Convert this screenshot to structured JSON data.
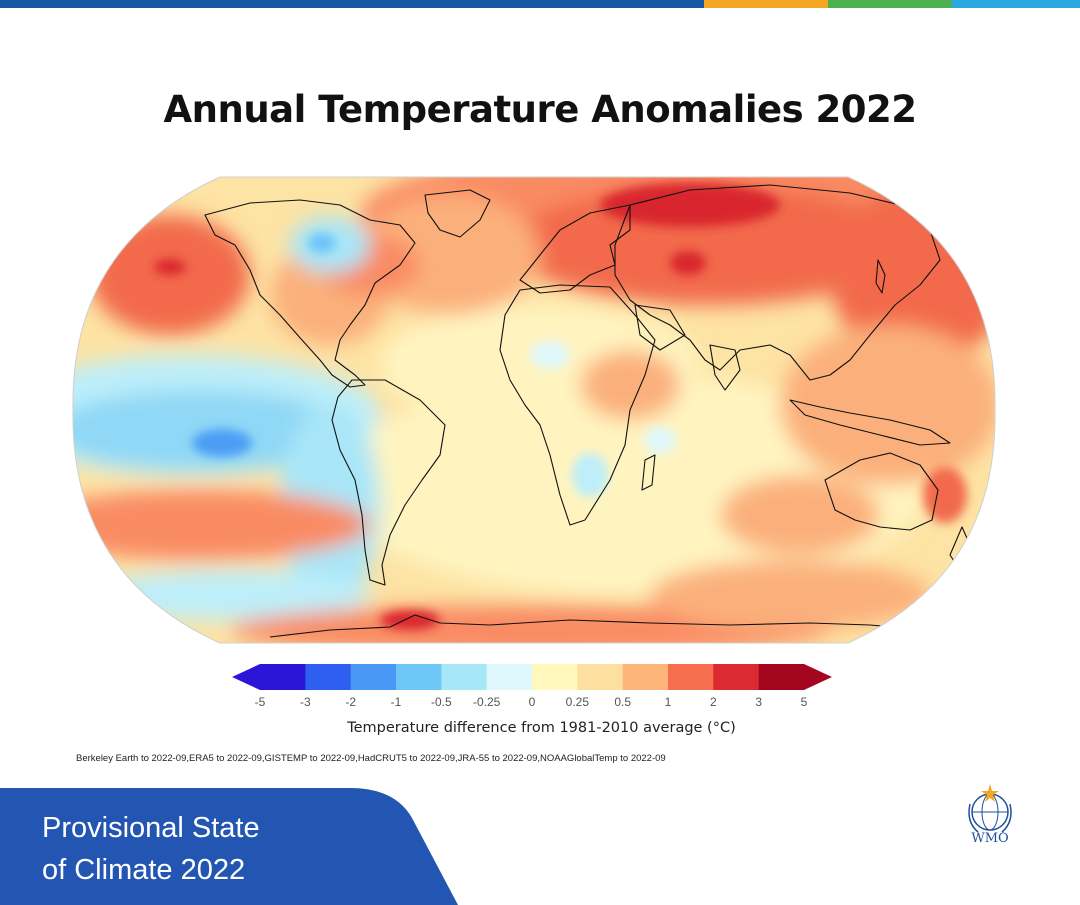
{
  "header": {
    "title": "Annual Temperature Anomalies 2022",
    "accent_colors": [
      "#1656a4",
      "#f5a623",
      "#4caf50",
      "#29a9e0"
    ]
  },
  "map": {
    "projection": "Robinson world map",
    "outline_color": "#111111"
  },
  "colorbar": {
    "ticks": [
      "-5",
      "-3",
      "-2",
      "-1",
      "-0.5",
      "-0.25",
      "0",
      "0.25",
      "0.5",
      "1",
      "2",
      "3",
      "5"
    ],
    "colors": [
      "#2b16d8",
      "#2f5ff0",
      "#4a98f5",
      "#6ec6f7",
      "#a6e8f8",
      "#def8fb",
      "#fff7bc",
      "#fde0a0",
      "#fdb57a",
      "#f56f4e",
      "#dc2a32",
      "#a5061f"
    ],
    "caption": "Temperature difference from 1981-2010 average (°C)"
  },
  "sources": "Berkeley Earth to 2022-09,ERA5 to 2022-09,GISTEMP to 2022-09,HadCRUT5 to 2022-09,JRA-55 to 2022-09,NOAAGlobalTemp to 2022-09",
  "footer": {
    "line1": "Provisional State",
    "line2": "of Climate 2022",
    "bg_color": "#2356b3"
  },
  "logo": {
    "text": "WMO"
  }
}
